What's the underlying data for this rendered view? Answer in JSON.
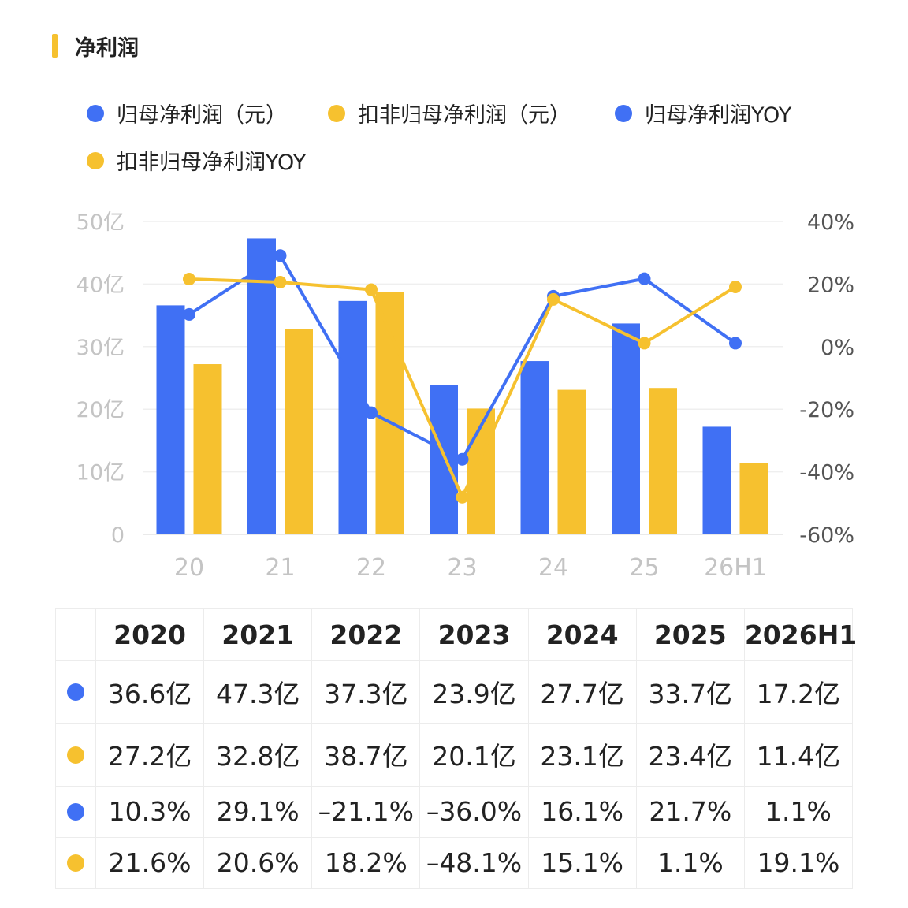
{
  "title": "净利润",
  "colors": {
    "blue": "#4070f4",
    "yellow": "#f6c12f",
    "accent": "#f6c12f"
  },
  "legend": [
    {
      "label": "归母净利润（元）",
      "color": "#4070f4"
    },
    {
      "label": "扣非归母净利润（元）",
      "color": "#f6c12f"
    },
    {
      "label": "归母净利润YOY",
      "color": "#4070f4"
    },
    {
      "label": "扣非归母净利润YOY",
      "color": "#f6c12f"
    }
  ],
  "chart_data": {
    "type": "bar",
    "categories": [
      "20",
      "21",
      "22",
      "23",
      "24",
      "25",
      "26H1"
    ],
    "y_left": {
      "ticks": [
        "0",
        "10亿",
        "20亿",
        "30亿",
        "40亿",
        "50亿"
      ],
      "ylim": [
        0,
        50
      ]
    },
    "y_right": {
      "ticks": [
        "-60%",
        "-40%",
        "-20%",
        "0%",
        "20%",
        "40%"
      ],
      "ylim": [
        -60,
        40
      ]
    },
    "grid": true,
    "legend_position": "top",
    "series": [
      {
        "name": "归母净利润（元）",
        "kind": "bar",
        "axis": "left",
        "color": "#4070f4",
        "values": [
          36.6,
          47.3,
          37.3,
          23.9,
          27.7,
          33.7,
          17.2
        ]
      },
      {
        "name": "扣非归母净利润（元）",
        "kind": "bar",
        "axis": "left",
        "color": "#f6c12f",
        "values": [
          27.2,
          32.8,
          38.7,
          20.1,
          23.1,
          23.4,
          11.4
        ]
      },
      {
        "name": "归母净利润YOY",
        "kind": "line",
        "axis": "right",
        "color": "#4070f4",
        "values": [
          10.3,
          29.1,
          -21.1,
          -36.0,
          16.1,
          21.7,
          1.1
        ]
      },
      {
        "name": "扣非归母净利润YOY",
        "kind": "line",
        "axis": "right",
        "color": "#f6c12f",
        "values": [
          21.6,
          20.6,
          18.2,
          -48.1,
          15.1,
          1.1,
          19.1
        ]
      }
    ]
  },
  "table": {
    "headers": [
      "2020",
      "2021",
      "2022",
      "2023",
      "2024",
      "2025",
      "2026H1"
    ],
    "rows": [
      {
        "color": "#4070f4",
        "cells": [
          "36.6亿",
          "47.3亿",
          "37.3亿",
          "23.9亿",
          "27.7亿",
          "33.7亿",
          "17.2亿"
        ]
      },
      {
        "color": "#f6c12f",
        "cells": [
          "27.2亿",
          "32.8亿",
          "38.7亿",
          "20.1亿",
          "23.1亿",
          "23.4亿",
          "11.4亿"
        ]
      },
      {
        "color": "#4070f4",
        "cells": [
          "10.3%",
          "29.1%",
          "–21.1%",
          "–36.0%",
          "16.1%",
          "21.7%",
          "1.1%"
        ]
      },
      {
        "color": "#f6c12f",
        "cells": [
          "21.6%",
          "20.6%",
          "18.2%",
          "–48.1%",
          "15.1%",
          "1.1%",
          "19.1%"
        ]
      }
    ]
  }
}
